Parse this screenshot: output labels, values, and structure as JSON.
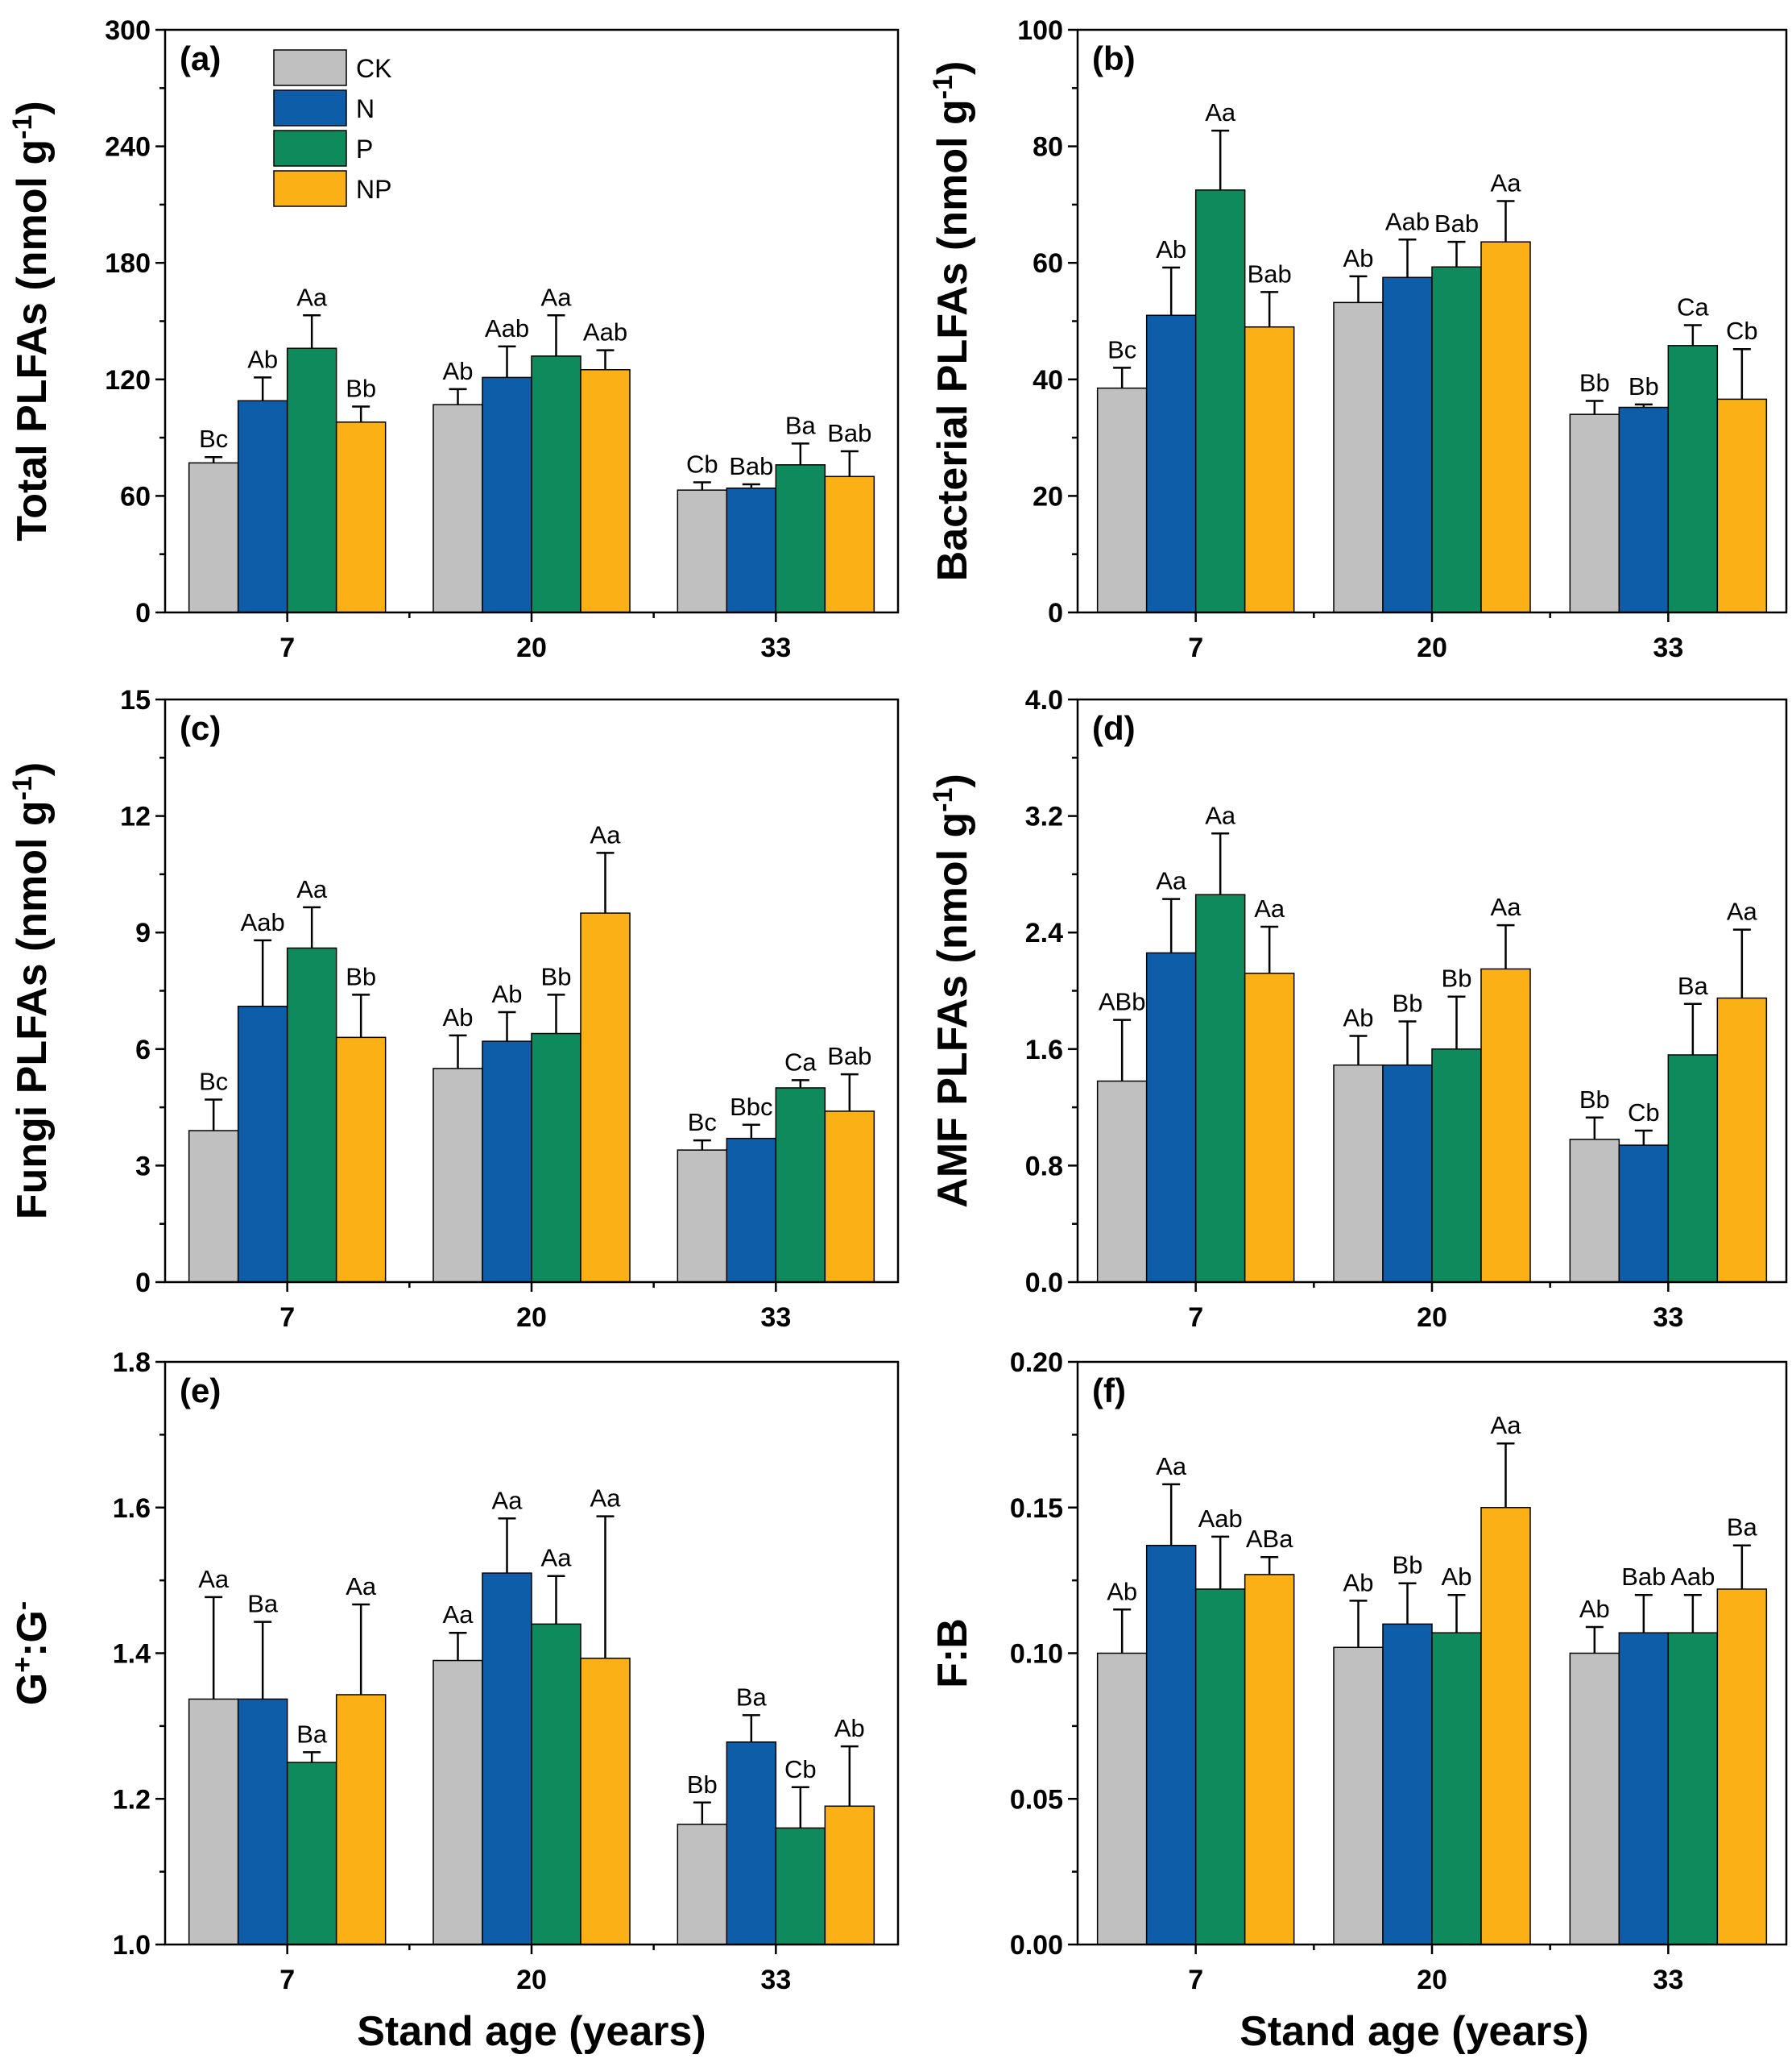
{
  "x_axis_label": "Stand age (years)",
  "legend": [
    {
      "name": "CK",
      "color": "#c0c0c0"
    },
    {
      "name": "N",
      "color": "#0e5da8"
    },
    {
      "name": "P",
      "color": "#0f8a5c"
    },
    {
      "name": "NP",
      "color": "#fbb116"
    }
  ],
  "chart_data": [
    {
      "panel": "(a)",
      "type": "bar",
      "ylabel": "Total PLFAs (nmol g-1)",
      "ylabel_main": "Total PLFAs (nmol g",
      "ylabel_sup": "-1",
      "ylabel_tail": ")",
      "categories": [
        "7",
        "20",
        "33"
      ],
      "ylim": [
        0,
        300
      ],
      "yticks": [
        0,
        60,
        120,
        180,
        240,
        300
      ],
      "yticklabels": [
        "0",
        "60",
        "120",
        "180",
        "240",
        "300"
      ],
      "series": [
        {
          "name": "CK",
          "values": [
            77,
            107,
            63
          ],
          "errors": [
            3,
            8,
            4
          ],
          "labels": [
            "Bc",
            "Ab",
            "Cb"
          ]
        },
        {
          "name": "N",
          "values": [
            109,
            121,
            64
          ],
          "errors": [
            12,
            16,
            2
          ],
          "labels": [
            "Ab",
            "Aab",
            "Bab"
          ]
        },
        {
          "name": "P",
          "values": [
            136,
            132,
            76
          ],
          "errors": [
            17,
            21,
            11
          ],
          "labels": [
            "Aa",
            "Aa",
            "Ba"
          ]
        },
        {
          "name": "NP",
          "values": [
            98,
            125,
            70
          ],
          "errors": [
            8,
            10,
            13
          ],
          "labels": [
            "Bb",
            "Aab",
            "Bab"
          ]
        }
      ]
    },
    {
      "panel": "(b)",
      "type": "bar",
      "ylabel": "Bacterial PLFAs (nmol g-1)",
      "ylabel_main": "Bacterial PLFAs (nmol g",
      "ylabel_sup": "-1",
      "ylabel_tail": ")",
      "categories": [
        "7",
        "20",
        "33"
      ],
      "ylim": [
        0,
        100
      ],
      "yticks": [
        0,
        20,
        40,
        60,
        80,
        100
      ],
      "yticklabels": [
        "0",
        "20",
        "40",
        "60",
        "80",
        "100"
      ],
      "series": [
        {
          "name": "CK",
          "values": [
            38.5,
            53.2,
            34
          ],
          "errors": [
            3.5,
            4.5,
            2.3
          ],
          "labels": [
            "Bc",
            "Ab",
            "Bb"
          ]
        },
        {
          "name": "N",
          "values": [
            51,
            57.5,
            35.2
          ],
          "errors": [
            8.2,
            6.5,
            0.5
          ],
          "labels": [
            "Ab",
            "Aab",
            "Bb"
          ]
        },
        {
          "name": "P",
          "values": [
            72.5,
            59.3,
            45.8
          ],
          "errors": [
            10.2,
            4.3,
            3.5
          ],
          "labels": [
            "Aa",
            "Bab",
            "Ca"
          ]
        },
        {
          "name": "NP",
          "values": [
            49,
            63.6,
            36.6
          ],
          "errors": [
            6,
            7,
            8.6
          ],
          "labels": [
            "Bab",
            "Aa",
            "Cb"
          ]
        }
      ]
    },
    {
      "panel": "(c)",
      "type": "bar",
      "ylabel": "Fungi PLFAs (nmol g-1)",
      "ylabel_main": "Fungi PLFAs (nmol g",
      "ylabel_sup": "-1",
      "ylabel_tail": ")",
      "categories": [
        "7",
        "20",
        "33"
      ],
      "ylim": [
        0,
        15
      ],
      "yticks": [
        0,
        3,
        6,
        9,
        12,
        15
      ],
      "yticklabels": [
        "0",
        "3",
        "6",
        "9",
        "12",
        "15"
      ],
      "series": [
        {
          "name": "CK",
          "values": [
            3.9,
            5.5,
            3.4
          ],
          "errors": [
            0.8,
            0.85,
            0.25
          ],
          "labels": [
            "Bc",
            "Ab",
            "Bc"
          ]
        },
        {
          "name": "N",
          "values": [
            7.1,
            6.2,
            3.7
          ],
          "errors": [
            1.7,
            0.75,
            0.35
          ],
          "labels": [
            "Aab",
            "Ab",
            "Bbc"
          ]
        },
        {
          "name": "P",
          "values": [
            8.6,
            6.4,
            5.0
          ],
          "errors": [
            1.05,
            1.0,
            0.2
          ],
          "labels": [
            "Aa",
            "Bb",
            "Ca"
          ]
        },
        {
          "name": "NP",
          "values": [
            6.3,
            9.5,
            4.4
          ],
          "errors": [
            1.1,
            1.55,
            0.95
          ],
          "labels": [
            "Bb",
            "Aa",
            "Bab"
          ]
        }
      ]
    },
    {
      "panel": "(d)",
      "type": "bar",
      "ylabel": "AMF PLFAs (nmol g-1)",
      "ylabel_main": "AMF PLFAs (nmol g",
      "ylabel_sup": "-1",
      "ylabel_tail": ")",
      "categories": [
        "7",
        "20",
        "33"
      ],
      "ylim": [
        0,
        4.0
      ],
      "yticks": [
        0,
        0.8,
        1.6,
        2.4,
        3.2,
        4.0
      ],
      "yticklabels": [
        "0.0",
        "0.8",
        "1.6",
        "2.4",
        "3.2",
        "4.0"
      ],
      "series": [
        {
          "name": "CK",
          "values": [
            1.38,
            1.49,
            0.98
          ],
          "errors": [
            0.42,
            0.2,
            0.15
          ],
          "labels": [
            "ABb",
            "Ab",
            "Bb"
          ]
        },
        {
          "name": "N",
          "values": [
            2.26,
            1.49,
            0.94
          ],
          "errors": [
            0.37,
            0.3,
            0.1
          ],
          "labels": [
            "Aa",
            "Bb",
            "Cb"
          ]
        },
        {
          "name": "P",
          "values": [
            2.66,
            1.6,
            1.56
          ],
          "errors": [
            0.42,
            0.36,
            0.35
          ],
          "labels": [
            "Aa",
            "Bb",
            "Ba"
          ]
        },
        {
          "name": "NP",
          "values": [
            2.12,
            2.15,
            1.95
          ],
          "errors": [
            0.32,
            0.3,
            0.47
          ],
          "labels": [
            "Aa",
            "Aa",
            "Aa"
          ]
        }
      ]
    },
    {
      "panel": "(e)",
      "type": "bar",
      "ylabel": "G+:G-",
      "ylabel_main": "G",
      "ylabel_sup": "+",
      "ylabel_tail": ":G",
      "ylabel_sup2": "-",
      "categories": [
        "7",
        "20",
        "33"
      ],
      "ylim": [
        1.0,
        1.8
      ],
      "yticks": [
        1.0,
        1.2,
        1.4,
        1.6,
        1.8
      ],
      "yticklabels": [
        "1.0",
        "1.2",
        "1.4",
        "1.6",
        "1.8"
      ],
      "series": [
        {
          "name": "CK",
          "values": [
            1.337,
            1.39,
            1.165
          ],
          "errors": [
            0.14,
            0.038,
            0.03
          ],
          "labels": [
            "Aa",
            "Aa",
            "Bb"
          ]
        },
        {
          "name": "N",
          "values": [
            1.337,
            1.51,
            1.278
          ],
          "errors": [
            0.106,
            0.075,
            0.037
          ],
          "labels": [
            "Ba",
            "Aa",
            "Ba"
          ]
        },
        {
          "name": "P",
          "values": [
            1.25,
            1.44,
            1.16
          ],
          "errors": [
            0.014,
            0.066,
            0.056
          ],
          "labels": [
            "Ba",
            "Aa",
            "Cb"
          ]
        },
        {
          "name": "NP",
          "values": [
            1.343,
            1.393,
            1.19
          ],
          "errors": [
            0.124,
            0.195,
            0.082
          ],
          "labels": [
            "Aa",
            "Aa",
            "Ab"
          ]
        }
      ]
    },
    {
      "panel": "(f)",
      "type": "bar",
      "ylabel": "F:B",
      "ylabel_main": "F:B",
      "ylabel_sup": "",
      "ylabel_tail": "",
      "categories": [
        "7",
        "20",
        "33"
      ],
      "ylim": [
        0,
        0.2
      ],
      "yticks": [
        0,
        0.05,
        0.1,
        0.15,
        0.2
      ],
      "yticklabels": [
        "0.00",
        "0.05",
        "0.10",
        "0.15",
        "0.20"
      ],
      "series": [
        {
          "name": "CK",
          "values": [
            0.1,
            0.102,
            0.1
          ],
          "errors": [
            0.015,
            0.016,
            0.009
          ],
          "labels": [
            "Ab",
            "Ab",
            "Ab"
          ]
        },
        {
          "name": "N",
          "values": [
            0.137,
            0.11,
            0.107
          ],
          "errors": [
            0.021,
            0.014,
            0.013
          ],
          "labels": [
            "Aa",
            "Bb",
            "Bab"
          ]
        },
        {
          "name": "P",
          "values": [
            0.122,
            0.107,
            0.107
          ],
          "errors": [
            0.018,
            0.013,
            0.013
          ],
          "labels": [
            "Aab",
            "Ab",
            "Aab"
          ]
        },
        {
          "name": "NP",
          "values": [
            0.127,
            0.15,
            0.122
          ],
          "errors": [
            0.006,
            0.022,
            0.015
          ],
          "labels": [
            "ABa",
            "Aa",
            "Ba"
          ]
        }
      ]
    }
  ]
}
